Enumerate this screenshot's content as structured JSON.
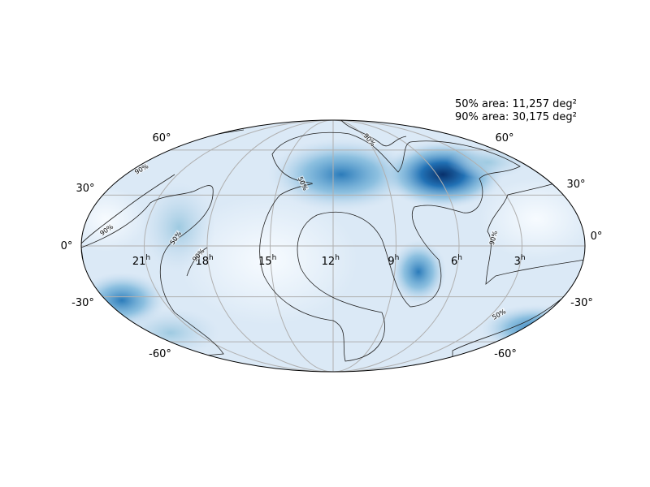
{
  "annotation": [
    "50% area: 11,257 deg²",
    "90% area: 30,175 deg²"
  ],
  "lat_labels": [
    "60°",
    "30°",
    "0°",
    "-30°",
    "-60°"
  ],
  "ra_labels": [
    "21",
    "18",
    "15",
    "12",
    "9",
    "6",
    "3"
  ],
  "ra_unit": "h",
  "contour_levels": [
    "50%",
    "90%"
  ]
}
